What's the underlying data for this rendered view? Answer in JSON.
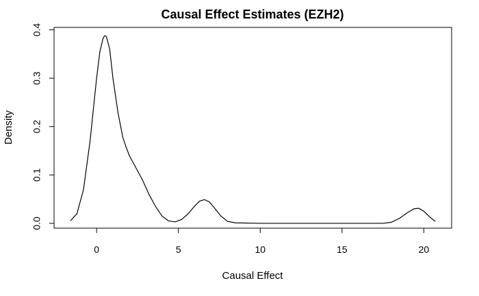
{
  "chart_data": {
    "type": "line",
    "title": "Causal Effect Estimates (EZH2)",
    "xlabel": "Causal Effect",
    "ylabel": "Density",
    "xlim": [
      -2.6,
      21.7
    ],
    "ylim": [
      -0.01,
      0.405
    ],
    "x_ticks": [
      0,
      5,
      10,
      15,
      20
    ],
    "y_ticks": [
      0.0,
      0.1,
      0.2,
      0.3,
      0.4
    ],
    "x_tick_labels": [
      "0",
      "5",
      "10",
      "15",
      "20"
    ],
    "y_tick_labels": [
      "0.0",
      "0.1",
      "0.2",
      "0.3",
      "0.4"
    ],
    "grid": false,
    "series": [
      {
        "color": "#000000",
        "x": [
          -1.6,
          -1.2,
          -0.8,
          -0.4,
          0.0,
          0.2,
          0.4,
          0.5,
          0.6,
          0.8,
          1.0,
          1.3,
          1.6,
          1.8,
          2.0,
          2.4,
          2.8,
          3.2,
          3.6,
          4.0,
          4.4,
          4.8,
          5.2,
          5.6,
          6.0,
          6.3,
          6.6,
          6.9,
          7.2,
          7.6,
          8.0,
          8.5,
          10.0,
          12.0,
          14.0,
          16.0,
          17.5,
          18.0,
          18.5,
          19.0,
          19.4,
          19.7,
          20.0,
          20.4,
          20.7
        ],
        "y": [
          0.005,
          0.02,
          0.07,
          0.17,
          0.3,
          0.355,
          0.383,
          0.388,
          0.386,
          0.36,
          0.3,
          0.23,
          0.178,
          0.158,
          0.14,
          0.115,
          0.09,
          0.06,
          0.035,
          0.015,
          0.005,
          0.003,
          0.008,
          0.02,
          0.036,
          0.046,
          0.049,
          0.044,
          0.032,
          0.015,
          0.004,
          0.001,
          0.0,
          0.0,
          0.0,
          0.0,
          0.0,
          0.002,
          0.01,
          0.022,
          0.03,
          0.031,
          0.025,
          0.012,
          0.004
        ]
      }
    ]
  }
}
